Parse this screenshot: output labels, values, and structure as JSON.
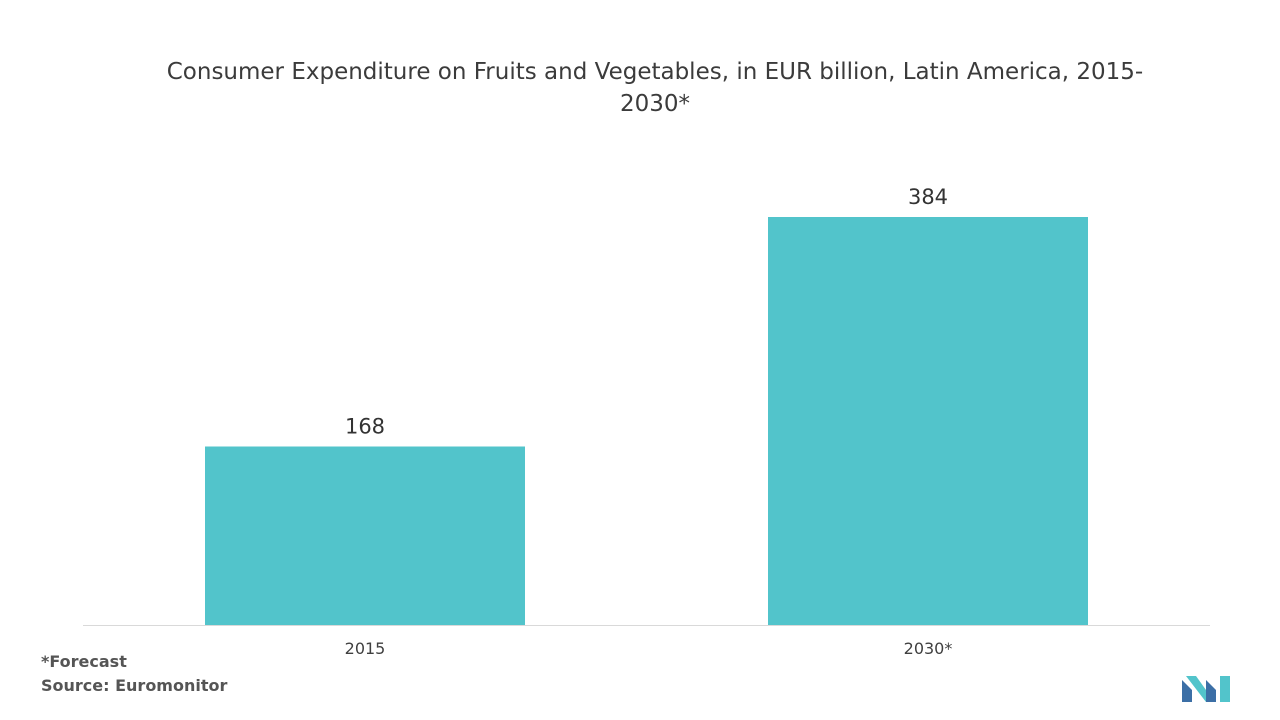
{
  "chart_data": {
    "type": "bar",
    "title": "Consumer Expenditure on Fruits and Vegetables, in EUR billion, Latin America, 2015-2030*",
    "categories": [
      "2015",
      "2030*"
    ],
    "values": [
      168,
      384
    ],
    "ylim": [
      0,
      384
    ],
    "grid": false,
    "bar_color": "#52c4cb",
    "xlabel": "",
    "ylabel": ""
  },
  "footnote": "*Forecast",
  "source": "Source: Euromonitor",
  "logo": {
    "icon": "mordor-intelligence-logo",
    "colors": [
      "#3c6fa6",
      "#52c4cb"
    ]
  }
}
